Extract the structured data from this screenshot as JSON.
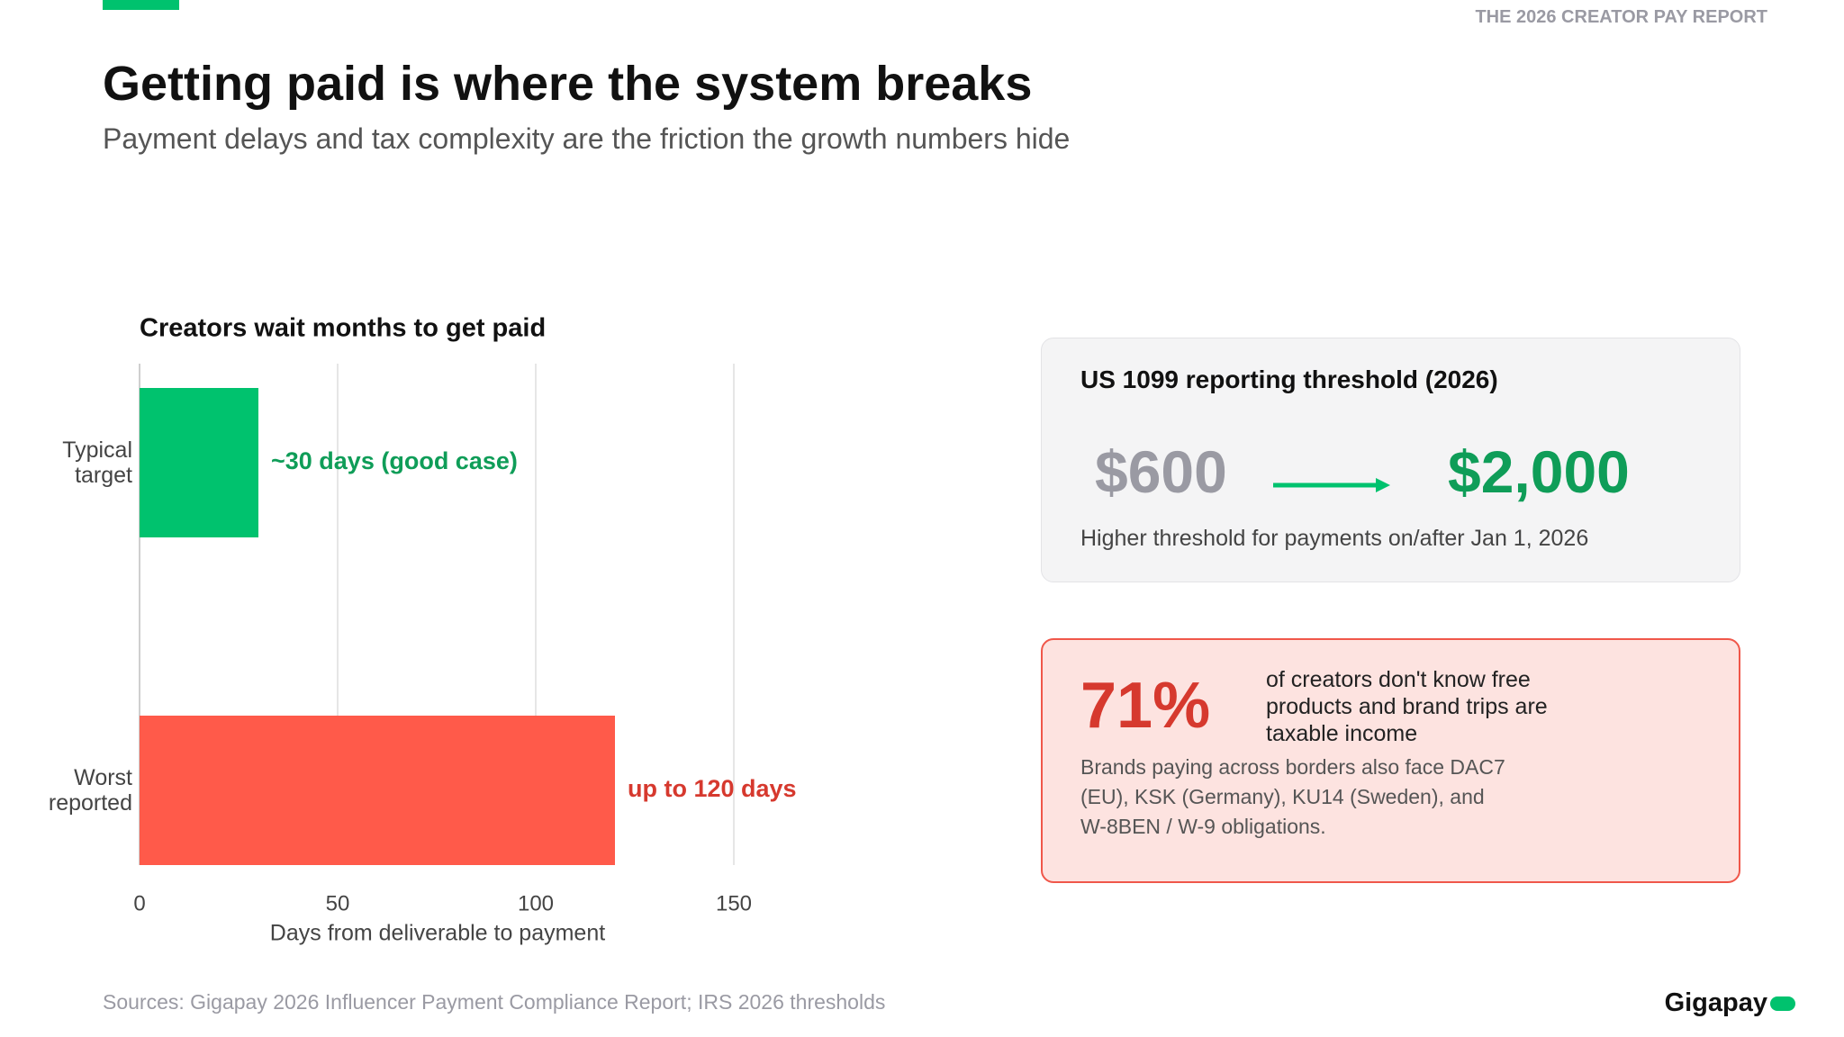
{
  "header": {
    "report_label": "THE 2026 CREATOR PAY REPORT",
    "title": "Getting paid is where the system breaks",
    "subtitle": "Payment delays and tax complexity are the friction the growth numbers hide"
  },
  "chart_data": {
    "type": "bar",
    "orientation": "horizontal",
    "title": "Creators wait months to get paid",
    "categories": [
      "Typical target",
      "Worst reported"
    ],
    "values": [
      30,
      120
    ],
    "value_labels": [
      "~30 days (good case)",
      "up to 120 days"
    ],
    "colors": [
      "#00c26e",
      "#ff5a4a"
    ],
    "label_colors": [
      "#0f9d58",
      "#d6392e"
    ],
    "xlim": [
      0,
      150
    ],
    "xticks": [
      0,
      50,
      100,
      150
    ],
    "xlabel": "Days from deliverable to payment",
    "grid": true
  },
  "threshold_card": {
    "title": "US 1099 reporting threshold (2026)",
    "from": "$600",
    "to": "$2,000",
    "note": "Higher threshold for payments on/after Jan 1, 2026"
  },
  "stat_card": {
    "stat": "71%",
    "statement": "of creators don't know free products and brand trips are taxable income",
    "detail": "Brands paying across borders also face DAC7 (EU), KSK (Germany), KU14 (Sweden), and W-8BEN / W-9 obligations."
  },
  "footer": {
    "sources": "Sources: Gigapay 2026 Influencer Payment Compliance Report; IRS 2026 thresholds",
    "brand": "Gigapay"
  }
}
